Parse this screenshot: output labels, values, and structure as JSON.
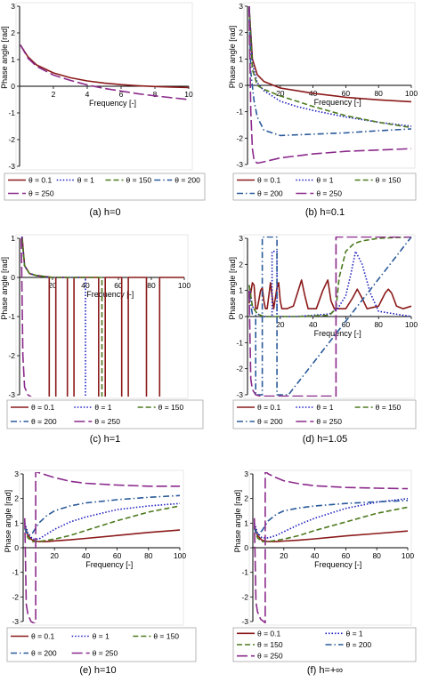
{
  "figure": {
    "colors": {
      "c01": "#8b1a1a",
      "c1": "#1f1fbf",
      "c150": "#4d7a1e",
      "c200": "#2a5a9a",
      "c250": "#8b2a8b",
      "axis": "#000000"
    },
    "line_styles": {
      "c01": "solid",
      "c1": "dotted",
      "c150": "dashed",
      "c200": "dashdot",
      "c250": "longdash"
    }
  },
  "chart_data": [
    {
      "type": "line",
      "caption": "(a) h=0",
      "xlabel": "Frequency [-]",
      "ylabel": "Phase angle [rad]",
      "xlim": [
        0,
        10
      ],
      "ylim": [
        -3,
        3
      ],
      "xticks": [
        2,
        4,
        6,
        8,
        10
      ],
      "yticks": [
        -3,
        -2,
        -1,
        0,
        1,
        2,
        3
      ],
      "legend_labels": [
        "θ = 0.1",
        "θ = 1",
        "θ = 150",
        "θ = 200",
        "θ = 250"
      ],
      "series": [
        {
          "name": "θ = 0.1",
          "key": "c01",
          "x": [
            0.05,
            0.5,
            1,
            2,
            3,
            4,
            5,
            6,
            7,
            8,
            9,
            10
          ],
          "y": [
            1.55,
            1.1,
            0.8,
            0.5,
            0.32,
            0.2,
            0.12,
            0.06,
            0.02,
            -0.01,
            -0.03,
            -0.05
          ]
        },
        {
          "name": "θ = 250",
          "key": "c250",
          "x": [
            0.05,
            0.5,
            1,
            2,
            3,
            4,
            5,
            6,
            7,
            8,
            9,
            10
          ],
          "y": [
            1.55,
            1.05,
            0.75,
            0.42,
            0.22,
            0.05,
            -0.08,
            -0.18,
            -0.28,
            -0.36,
            -0.43,
            -0.5
          ]
        }
      ]
    },
    {
      "type": "line",
      "caption": "(b) h=0.1",
      "xlabel": "Frequency [-]",
      "ylabel": "Phase angle [rad]",
      "xlim": [
        0,
        100
      ],
      "ylim": [
        -3,
        3
      ],
      "xticks": [
        20,
        40,
        60,
        80,
        100
      ],
      "yticks": [
        -3,
        -2,
        -1,
        0,
        1,
        2,
        3
      ],
      "legend_labels": [
        "θ = 0.1",
        "θ = 1",
        "θ = 150",
        "θ = 200",
        "θ = 250"
      ],
      "series": [
        {
          "name": "θ = 0.1",
          "key": "c01",
          "x": [
            1,
            3,
            6,
            10,
            20,
            30,
            40,
            60,
            80,
            100
          ],
          "y": [
            3.0,
            1.0,
            0.4,
            0.15,
            -0.1,
            -0.2,
            -0.3,
            -0.45,
            -0.55,
            -0.62
          ]
        },
        {
          "name": "θ = 1",
          "key": "c1",
          "x": [
            1,
            3,
            6,
            10,
            20,
            30,
            40,
            60,
            80,
            100
          ],
          "y": [
            3.0,
            0.8,
            0.1,
            -0.2,
            -0.6,
            -0.8,
            -0.95,
            -1.2,
            -1.4,
            -1.55
          ]
        },
        {
          "name": "θ = 150",
          "key": "c150",
          "x": [
            1,
            3,
            6,
            10,
            20,
            30,
            40,
            60,
            80,
            100
          ],
          "y": [
            3.0,
            0.6,
            0.0,
            -0.15,
            -0.4,
            -0.6,
            -0.8,
            -1.15,
            -1.4,
            -1.6
          ]
        },
        {
          "name": "θ = 200",
          "key": "c200",
          "x": [
            1,
            2,
            4,
            6,
            10,
            20,
            40,
            60,
            80,
            100
          ],
          "y": [
            3.0,
            0.5,
            -0.6,
            -1.2,
            -1.7,
            -1.9,
            -1.85,
            -1.8,
            -1.72,
            -1.65
          ]
        },
        {
          "name": "θ = 250",
          "key": "c250",
          "x": [
            1,
            2,
            3,
            4,
            6,
            10,
            20,
            40,
            60,
            80,
            100
          ],
          "y": [
            3.0,
            -1.0,
            -2.4,
            -2.85,
            -2.95,
            -2.9,
            -2.75,
            -2.6,
            -2.5,
            -2.45,
            -2.4
          ]
        }
      ]
    },
    {
      "type": "line",
      "caption": "(c) h=1",
      "xlabel": "Frequency [-]",
      "ylabel": "Phase angle [rad]",
      "xlim": [
        0,
        100
      ],
      "ylim": [
        -3,
        1
      ],
      "xticks": [
        20,
        40,
        60,
        80,
        100
      ],
      "yticks": [
        -3,
        -2,
        -1,
        0,
        1
      ],
      "legend_labels": [
        "θ = 0.1",
        "θ = 1",
        "θ = 150",
        "θ = 200",
        "θ = 250"
      ],
      "series": [
        {
          "name": "θ = 0.1",
          "key": "c01",
          "x": [
            1,
            3,
            6,
            10,
            20,
            18,
            18,
            22,
            22,
            29,
            29,
            33,
            33,
            48,
            48,
            52,
            52,
            62,
            62,
            66,
            66,
            77,
            77,
            85,
            85,
            100
          ],
          "y": [
            1.3,
            0.3,
            0.1,
            0.05,
            0.0,
            0.0,
            -3.1,
            -3.1,
            0.0,
            0.0,
            -3.1,
            -3.1,
            0.0,
            0.0,
            -3.1,
            -3.1,
            0.0,
            0.0,
            -3.1,
            -3.1,
            0.0,
            0.0,
            -3.1,
            -3.1,
            0.0,
            0.0
          ]
        },
        {
          "name": "θ = 1",
          "key": "c1",
          "x": [
            1,
            3,
            6,
            10,
            20,
            40,
            40,
            100
          ],
          "y": [
            1.2,
            0.3,
            0.1,
            0.05,
            0.0,
            0.0,
            -3.1,
            -3.1
          ]
        },
        {
          "name": "θ = 150",
          "key": "c150",
          "x": [
            1,
            3,
            6,
            10,
            20,
            40,
            50,
            50,
            100
          ],
          "y": [
            1.2,
            0.3,
            0.1,
            0.05,
            0.0,
            0.0,
            0.0,
            -3.1,
            -3.1
          ]
        },
        {
          "name": "θ = 250",
          "key": "c250",
          "x": [
            1,
            2,
            3,
            5,
            8,
            15,
            30,
            60,
            100
          ],
          "y": [
            1.0,
            -2.0,
            -2.8,
            -3.0,
            -3.08,
            -3.1,
            -3.1,
            -3.1,
            -3.1
          ]
        }
      ]
    },
    {
      "type": "line",
      "caption": "(d) h=1.05",
      "xlabel": "Frequency [-]",
      "ylabel": "Phase angle [rad]",
      "xlim": [
        0,
        100
      ],
      "ylim": [
        -3,
        3
      ],
      "xticks": [
        20,
        40,
        60,
        80,
        100
      ],
      "yticks": [
        -3,
        -2,
        -1,
        0,
        1,
        2,
        3
      ],
      "legend_labels": [
        "θ = 0.1",
        "θ = 1",
        "θ = 150",
        "θ = 200",
        "θ = 250"
      ],
      "series": [
        {
          "name": "θ = 0.1",
          "key": "c01",
          "x": [
            1,
            3,
            4,
            5,
            6,
            8,
            9,
            10,
            11,
            12,
            14,
            16,
            18,
            19,
            20,
            21,
            22,
            24,
            28,
            31,
            33,
            35,
            37,
            42,
            46,
            49,
            51,
            53,
            55,
            60,
            64,
            67,
            70,
            73,
            80,
            84,
            86,
            88,
            91,
            95,
            100
          ],
          "y": [
            0.5,
            1.3,
            1.2,
            0.3,
            0.3,
            1.0,
            1.1,
            0.6,
            0.3,
            0.3,
            1.3,
            0.3,
            1.1,
            1.3,
            0.6,
            0.3,
            0.3,
            0.3,
            0.4,
            1.0,
            1.4,
            0.8,
            0.3,
            0.3,
            1.0,
            1.4,
            0.6,
            0.3,
            0.3,
            0.3,
            0.7,
            1.05,
            0.7,
            0.3,
            0.4,
            0.9,
            1.05,
            0.9,
            0.4,
            0.3,
            0.4
          ]
        },
        {
          "name": "θ = 1",
          "key": "c1",
          "x": [
            1,
            3,
            6,
            10,
            15,
            15,
            18,
            18,
            30,
            50,
            55,
            60,
            63,
            66,
            70,
            75,
            80,
            100
          ],
          "y": [
            1.2,
            0.4,
            0.1,
            0.0,
            0.0,
            2.5,
            2.5,
            0.0,
            0.0,
            0.1,
            0.3,
            0.8,
            1.6,
            2.5,
            2.0,
            0.9,
            0.2,
            0.0
          ]
        },
        {
          "name": "θ = 150",
          "key": "c150",
          "x": [
            1,
            3,
            6,
            10,
            30,
            50,
            54,
            56,
            60,
            65,
            70,
            80,
            100
          ],
          "y": [
            1.2,
            0.4,
            0.1,
            0.0,
            0.0,
            0.05,
            0.3,
            1.5,
            2.5,
            2.8,
            2.9,
            3.0,
            3.05
          ]
        },
        {
          "name": "θ = 200",
          "key": "c200",
          "x": [
            1,
            3,
            5,
            5,
            9,
            9,
            18,
            18,
            25,
            100
          ],
          "y": [
            0.8,
            0.1,
            0.05,
            -3.0,
            -3.0,
            3.05,
            3.05,
            -3.0,
            -3.0,
            3.05
          ]
        },
        {
          "name": "θ = 250",
          "key": "c250",
          "x": [
            1,
            2,
            3,
            5,
            8,
            20,
            40,
            54,
            54,
            60,
            100
          ],
          "y": [
            1.0,
            -2.4,
            -2.8,
            -3.0,
            -3.05,
            -3.05,
            -3.05,
            -3.05,
            3.05,
            3.05,
            3.05
          ]
        }
      ]
    },
    {
      "type": "line",
      "caption": "(e) h=10",
      "xlabel": "Frequency [-]",
      "ylabel": "Phase angle [rad]",
      "xlim": [
        0,
        100
      ],
      "ylim": [
        -3,
        3
      ],
      "xticks": [
        20,
        40,
        60,
        80,
        100
      ],
      "yticks": [
        -3,
        -2,
        -1,
        0,
        1,
        2,
        3
      ],
      "legend_labels": [
        "θ = 0.1",
        "θ = 1",
        "θ = 150",
        "θ = 200",
        "θ = 250"
      ],
      "series": [
        {
          "name": "θ = 0.1",
          "key": "c01",
          "x": [
            1,
            3,
            6,
            10,
            15,
            20,
            30,
            40,
            60,
            80,
            100
          ],
          "y": [
            0.9,
            0.5,
            0.3,
            0.25,
            0.25,
            0.28,
            0.32,
            0.38,
            0.5,
            0.62,
            0.72
          ]
        },
        {
          "name": "θ = 1",
          "key": "c1",
          "x": [
            1,
            3,
            6,
            10,
            15,
            20,
            30,
            40,
            60,
            80,
            100
          ],
          "y": [
            1.0,
            0.6,
            0.35,
            0.35,
            0.55,
            0.75,
            1.05,
            1.25,
            1.55,
            1.7,
            1.8
          ]
        },
        {
          "name": "θ = 150",
          "key": "c150",
          "x": [
            1,
            3,
            6,
            10,
            15,
            20,
            30,
            40,
            60,
            80,
            100
          ],
          "y": [
            0.8,
            0.4,
            0.25,
            0.25,
            0.3,
            0.35,
            0.5,
            0.7,
            1.1,
            1.45,
            1.7
          ]
        },
        {
          "name": "θ = 200",
          "key": "c200",
          "x": [
            1,
            3,
            6,
            10,
            15,
            20,
            30,
            40,
            60,
            80,
            100
          ],
          "y": [
            0.8,
            0.5,
            0.6,
            1.0,
            1.3,
            1.5,
            1.7,
            1.82,
            1.95,
            2.05,
            2.12
          ]
        },
        {
          "name": "θ = 250",
          "key": "c250",
          "x": [
            1,
            2,
            3,
            5,
            8,
            8,
            10,
            15,
            20,
            30,
            40,
            60,
            80,
            100
          ],
          "y": [
            1.2,
            -2.3,
            -2.7,
            -3.0,
            -3.1,
            3.1,
            3.05,
            2.95,
            2.85,
            2.7,
            2.62,
            2.55,
            2.5,
            2.5
          ]
        }
      ]
    },
    {
      "type": "line",
      "caption": "(f) h=+∞",
      "xlabel": "Frequency [-]",
      "ylabel": "Phase angle [rad]",
      "xlim": [
        0,
        100
      ],
      "ylim": [
        -3,
        3
      ],
      "xticks": [
        20,
        40,
        60,
        80,
        100
      ],
      "yticks": [
        -3,
        -2,
        -1,
        0,
        1,
        2,
        3
      ],
      "legend_labels": [
        "θ = 0.1",
        "θ = 1",
        "θ = 150",
        "θ = 200",
        "θ = 250"
      ],
      "series": [
        {
          "name": "θ = 0.1",
          "key": "c01",
          "x": [
            1,
            3,
            6,
            10,
            15,
            20,
            30,
            40,
            60,
            80,
            100
          ],
          "y": [
            0.9,
            0.5,
            0.3,
            0.25,
            0.25,
            0.27,
            0.31,
            0.36,
            0.48,
            0.58,
            0.68
          ]
        },
        {
          "name": "θ = 1",
          "key": "c1",
          "x": [
            1,
            3,
            6,
            10,
            15,
            20,
            30,
            40,
            60,
            80,
            100
          ],
          "y": [
            1.0,
            0.6,
            0.4,
            0.4,
            0.5,
            0.65,
            0.95,
            1.2,
            1.6,
            1.85,
            2.0
          ]
        },
        {
          "name": "θ = 150",
          "key": "c150",
          "x": [
            1,
            3,
            6,
            10,
            15,
            20,
            30,
            40,
            60,
            80,
            100
          ],
          "y": [
            0.8,
            0.4,
            0.25,
            0.25,
            0.3,
            0.35,
            0.5,
            0.7,
            1.05,
            1.4,
            1.65
          ]
        },
        {
          "name": "θ = 200",
          "key": "c200",
          "x": [
            1,
            3,
            6,
            10,
            15,
            20,
            30,
            40,
            60,
            80,
            100
          ],
          "y": [
            0.8,
            0.5,
            0.7,
            1.1,
            1.35,
            1.5,
            1.62,
            1.7,
            1.8,
            1.87,
            1.92
          ]
        },
        {
          "name": "θ = 250",
          "key": "c250",
          "x": [
            1,
            2,
            3,
            5,
            8,
            8,
            10,
            15,
            20,
            30,
            40,
            60,
            80,
            100
          ],
          "y": [
            1.2,
            -2.2,
            -2.6,
            -2.9,
            -3.05,
            3.1,
            3.0,
            2.85,
            2.72,
            2.6,
            2.52,
            2.45,
            2.42,
            2.4
          ]
        }
      ]
    }
  ]
}
